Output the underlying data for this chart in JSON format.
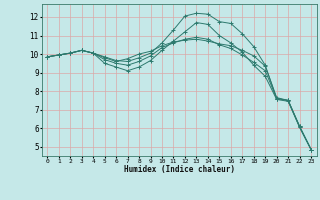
{
  "xlabel": "Humidex (Indice chaleur)",
  "background_color": "#c5e8e8",
  "grid_color": "#dba8a8",
  "line_color": "#2d7a6e",
  "xlim": [
    -0.5,
    23.5
  ],
  "ylim": [
    4.5,
    12.7
  ],
  "xticks": [
    0,
    1,
    2,
    3,
    4,
    5,
    6,
    7,
    8,
    9,
    10,
    11,
    12,
    13,
    14,
    15,
    16,
    17,
    18,
    19,
    20,
    21,
    22,
    23
  ],
  "yticks": [
    5,
    6,
    7,
    8,
    9,
    10,
    11,
    12
  ],
  "lines": [
    {
      "x": [
        0,
        1,
        2,
        3,
        4,
        5,
        6,
        7,
        8,
        9,
        10,
        11,
        12,
        13,
        14,
        15,
        16,
        17,
        18,
        19,
        20,
        21,
        22,
        23
      ],
      "y": [
        9.85,
        9.95,
        10.05,
        10.2,
        10.05,
        9.85,
        9.65,
        9.6,
        9.8,
        10.05,
        10.6,
        11.3,
        12.05,
        12.2,
        12.15,
        11.75,
        11.65,
        11.1,
        10.4,
        9.4,
        7.6,
        7.5,
        6.1,
        4.85
      ]
    },
    {
      "x": [
        0,
        1,
        2,
        3,
        4,
        5,
        6,
        7,
        8,
        9,
        10,
        11,
        12,
        13,
        14,
        15,
        16,
        17,
        18,
        19,
        20,
        21,
        22,
        23
      ],
      "y": [
        9.85,
        9.95,
        10.05,
        10.2,
        10.05,
        9.5,
        9.3,
        9.1,
        9.3,
        9.65,
        10.2,
        10.7,
        11.2,
        11.7,
        11.6,
        11.0,
        10.6,
        10.1,
        9.4,
        8.8,
        7.55,
        7.45,
        6.05,
        4.85
      ]
    },
    {
      "x": [
        0,
        1,
        2,
        3,
        4,
        5,
        6,
        7,
        8,
        9,
        10,
        11,
        12,
        13,
        14,
        15,
        16,
        17,
        18,
        19,
        20,
        21,
        22,
        23
      ],
      "y": [
        9.85,
        9.95,
        10.05,
        10.2,
        10.05,
        9.8,
        9.6,
        9.75,
        10.0,
        10.15,
        10.45,
        10.65,
        10.75,
        10.8,
        10.7,
        10.55,
        10.45,
        10.2,
        9.9,
        9.35,
        7.65,
        7.5,
        6.1,
        4.85
      ]
    },
    {
      "x": [
        0,
        1,
        2,
        3,
        4,
        5,
        6,
        7,
        8,
        9,
        10,
        11,
        12,
        13,
        14,
        15,
        16,
        17,
        18,
        19,
        20,
        21,
        22,
        23
      ],
      "y": [
        9.85,
        9.95,
        10.05,
        10.2,
        10.05,
        9.7,
        9.5,
        9.4,
        9.6,
        9.9,
        10.35,
        10.6,
        10.8,
        10.9,
        10.8,
        10.5,
        10.3,
        9.95,
        9.55,
        9.1,
        7.6,
        7.5,
        6.05,
        4.85
      ]
    }
  ]
}
